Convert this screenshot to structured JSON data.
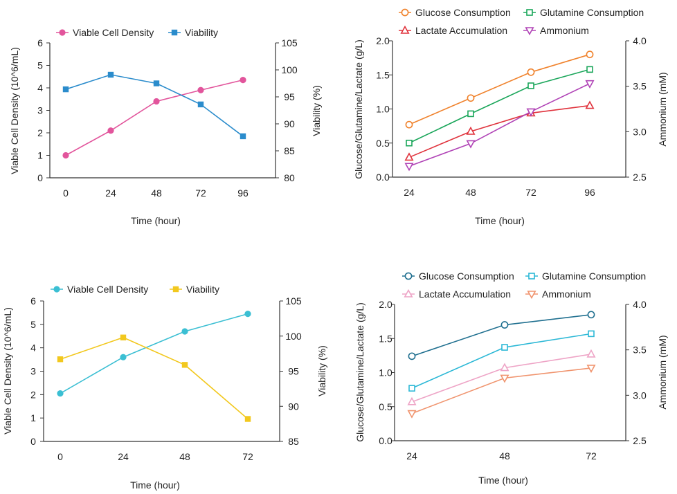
{
  "chart_data": [
    {
      "type": "line",
      "dual_axis": true,
      "xlabel": "Time (hour)",
      "ylabel_left": "Viable Cell Density (10^6/mL)",
      "ylabel_right": "Viability (%)",
      "x": [
        0,
        24,
        48,
        72,
        96
      ],
      "x_ticks": [
        "0",
        "24",
        "48",
        "72",
        "96"
      ],
      "ylim_left": [
        0,
        6
      ],
      "ylim_right": [
        80,
        105
      ],
      "left_ticks": [
        "0",
        "1",
        "2",
        "3",
        "4",
        "5",
        "6"
      ],
      "right_ticks": [
        "80",
        "85",
        "90",
        "95",
        "100",
        "105"
      ],
      "legend_position": "top",
      "series": [
        {
          "name": "Viable Cell Density",
          "axis": "left",
          "color": "#e2559c",
          "marker": "circle",
          "values": [
            1.0,
            2.1,
            3.4,
            3.9,
            4.35
          ]
        },
        {
          "name": "Viability",
          "axis": "right",
          "color": "#2b8ccc",
          "marker": "square",
          "values": [
            96.4,
            99.1,
            97.5,
            93.6,
            87.7
          ]
        }
      ]
    },
    {
      "type": "line",
      "dual_axis": true,
      "xlabel": "Time (hour)",
      "ylabel_left": "Glucose/Glutamine/Lactate (g/L)",
      "ylabel_right": "Ammonium (mM)",
      "x": [
        24,
        48,
        72,
        96
      ],
      "x_ticks": [
        "24",
        "48",
        "72",
        "96"
      ],
      "ylim_left": [
        0,
        2
      ],
      "ylim_right": [
        2.5,
        4.0
      ],
      "left_ticks": [
        "0.0",
        "0.5",
        "1.0",
        "1.5",
        "2.0"
      ],
      "right_ticks": [
        "2.5",
        "3.0",
        "3.5",
        "4.0"
      ],
      "legend_position": "top",
      "series": [
        {
          "name": "Glucose Consumption",
          "axis": "left",
          "color": "#f0822c",
          "marker": "circle-open",
          "values": [
            0.77,
            1.16,
            1.54,
            1.8
          ]
        },
        {
          "name": "Glutamine Consumption",
          "axis": "left",
          "color": "#1aa65a",
          "marker": "square-open",
          "values": [
            0.5,
            0.93,
            1.34,
            1.58
          ]
        },
        {
          "name": "Lactate Accumulation",
          "axis": "left",
          "color": "#e0323c",
          "marker": "triangle-up-open",
          "values": [
            0.29,
            0.67,
            0.94,
            1.05
          ]
        },
        {
          "name": "Ammonium",
          "axis": "right",
          "color": "#b043b6",
          "marker": "triangle-down-open",
          "values": [
            2.62,
            2.87,
            3.22,
            3.53
          ]
        }
      ]
    },
    {
      "type": "line",
      "dual_axis": true,
      "xlabel": "Time (hour)",
      "ylabel_left": "Viable Cell Density (10^6/mL)",
      "ylabel_right": "Viability (%)",
      "x": [
        0,
        24,
        48,
        72
      ],
      "x_ticks": [
        "0",
        "24",
        "48",
        "72"
      ],
      "ylim_left": [
        0,
        6
      ],
      "ylim_right": [
        85,
        105
      ],
      "left_ticks": [
        "0",
        "1",
        "2",
        "3",
        "4",
        "5",
        "6"
      ],
      "right_ticks": [
        "85",
        "90",
        "95",
        "100",
        "105"
      ],
      "legend_position": "top",
      "series": [
        {
          "name": "Viable Cell Density",
          "axis": "left",
          "color": "#3bbfd3",
          "marker": "circle",
          "values": [
            2.05,
            3.6,
            4.7,
            5.45
          ]
        },
        {
          "name": "Viability",
          "axis": "right",
          "color": "#f2c81e",
          "marker": "square",
          "values": [
            96.7,
            99.8,
            95.9,
            88.2
          ]
        }
      ]
    },
    {
      "type": "line",
      "dual_axis": true,
      "xlabel": "Time (hour)",
      "ylabel_left": "Glucose/Glutamine/Lactate (g/L)",
      "ylabel_right": "Ammonium (mM)",
      "x": [
        24,
        48,
        72
      ],
      "x_ticks": [
        "24",
        "48",
        "72"
      ],
      "ylim_left": [
        0,
        2
      ],
      "ylim_right": [
        2.5,
        4.0
      ],
      "left_ticks": [
        "0.0",
        "0.5",
        "1.0",
        "1.5",
        "2.0"
      ],
      "right_ticks": [
        "2.5",
        "3.0",
        "3.5",
        "4.0"
      ],
      "legend_position": "top",
      "series": [
        {
          "name": "Glucose Consumption",
          "axis": "left",
          "color": "#1f6f8f",
          "marker": "circle-open",
          "values": [
            1.24,
            1.7,
            1.85
          ]
        },
        {
          "name": "Glutamine Consumption",
          "axis": "left",
          "color": "#2cb8d6",
          "marker": "square-open",
          "values": [
            0.77,
            1.37,
            1.57
          ]
        },
        {
          "name": "Lactate Accumulation",
          "axis": "left",
          "color": "#eea4c6",
          "marker": "triangle-up-open",
          "values": [
            0.57,
            1.07,
            1.27
          ]
        },
        {
          "name": "Ammonium",
          "axis": "right",
          "color": "#f0946e",
          "marker": "triangle-down-open",
          "values": [
            2.8,
            3.19,
            3.3
          ]
        }
      ]
    }
  ]
}
